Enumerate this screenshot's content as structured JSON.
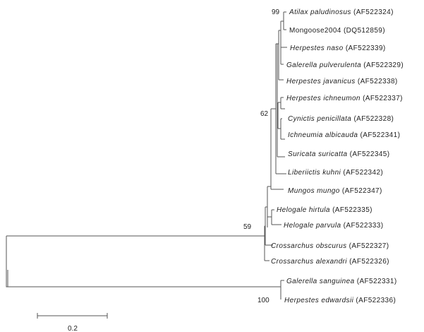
{
  "taxa": [
    {
      "id": "atilax",
      "species": "Atilax paludinosus",
      "accession": "(AF522324)"
    },
    {
      "id": "mongoose2004",
      "species": "",
      "plain": "Mongoose2004",
      "accession": "(DQ512859)"
    },
    {
      "id": "herpestes-naso",
      "species": "Herpestes naso",
      "accession": "(AF522339)"
    },
    {
      "id": "galerella-pulverulenta",
      "species": "Galerella pulverulenta",
      "accession": "(AF522329)"
    },
    {
      "id": "herpestes-javanicus",
      "species": "Herpestes javanicus",
      "accession": "(AF522338)"
    },
    {
      "id": "herpestes-ichneumon",
      "species": "Herpestes ichneumon",
      "accession": "(AF522337)"
    },
    {
      "id": "cynictis",
      "species": "Cynictis penicillata",
      "accession": "(AF522328)"
    },
    {
      "id": "ichneumia",
      "species": "Ichneumia albicauda",
      "accession": "(AF522341)"
    },
    {
      "id": "suricata",
      "species": "Suricata suricatta",
      "accession": "(AF522345)"
    },
    {
      "id": "liberiictis",
      "species": "Liberiictis kuhni",
      "accession": "(AF522342)"
    },
    {
      "id": "mungos",
      "species": "Mungos mungo",
      "accession": "(AF522347)"
    },
    {
      "id": "helogale-hirtula",
      "species": "Helogale hirtula",
      "accession": "(AF522335)"
    },
    {
      "id": "helogale-parvula",
      "species": "Helogale parvula",
      "accession": "(AF522333)"
    },
    {
      "id": "crossarchus-obscurus",
      "species": "Crossarchus obscurus",
      "accession": "(AF522327)"
    },
    {
      "id": "crossarchus-alexandri",
      "species": "Crossarchus alexandri",
      "accession": "(AF522326)"
    },
    {
      "id": "galerella-sanguinea",
      "species": "Galerella sanguinea",
      "accession": "(AF522331)"
    },
    {
      "id": "herpestes-edwardsii",
      "species": "Herpestes edwardsii",
      "accession": "(AF522336)"
    }
  ],
  "bootstrap": {
    "atilax_mongoose": "99",
    "main_clade": "62",
    "ingroup": "59",
    "outgroup": "100"
  },
  "scale_bar": {
    "label": "0.2"
  },
  "colors": {
    "branch": "#555555",
    "text": "#222222"
  }
}
